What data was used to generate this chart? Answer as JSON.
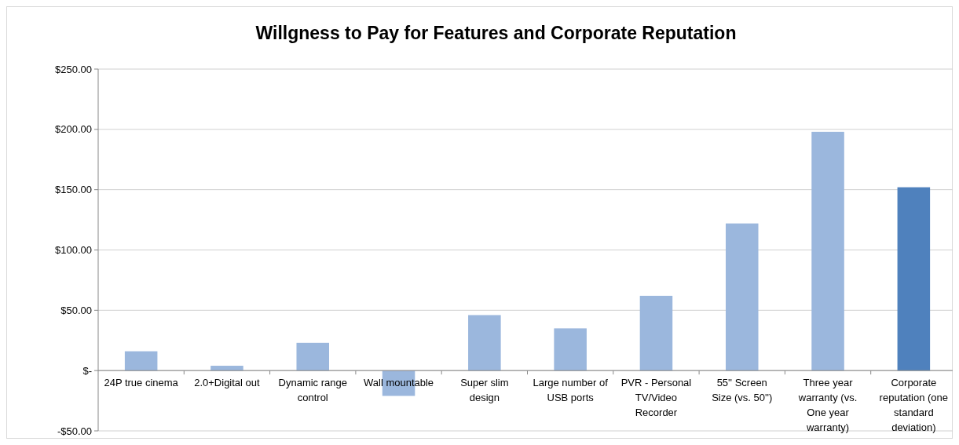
{
  "chart_data": {
    "type": "bar",
    "title": "Willgness to Pay for Features and Corporate Reputation",
    "categories": [
      "24P true cinema",
      "2.0+Digital out",
      "Dynamic range control",
      "Wall mountable",
      "Super slim design",
      "Large number of USB ports",
      "PVR - Personal TV/Video Recorder",
      "55'' Screen Size (vs. 50'')",
      "Three year warranty (vs. One year warranty)",
      "Corporate reputation (one standard deviation)"
    ],
    "values": [
      16,
      4,
      23,
      -21,
      46,
      35,
      62,
      122,
      198,
      152
    ],
    "colors": [
      "#9bb7dd",
      "#9bb7dd",
      "#9bb7dd",
      "#9bb7dd",
      "#9bb7dd",
      "#9bb7dd",
      "#9bb7dd",
      "#9bb7dd",
      "#9bb7dd",
      "#4f81bd"
    ],
    "ylim": [
      -50,
      250
    ],
    "yticks": [
      {
        "value": -50,
        "label": "-$50.00"
      },
      {
        "value": 0,
        "label": "$-"
      },
      {
        "value": 50,
        "label": "$50.00"
      },
      {
        "value": 100,
        "label": "$100.00"
      },
      {
        "value": 150,
        "label": "$150.00"
      },
      {
        "value": 200,
        "label": "$200.00"
      },
      {
        "value": 250,
        "label": "$250.00"
      }
    ],
    "grid": "y"
  }
}
